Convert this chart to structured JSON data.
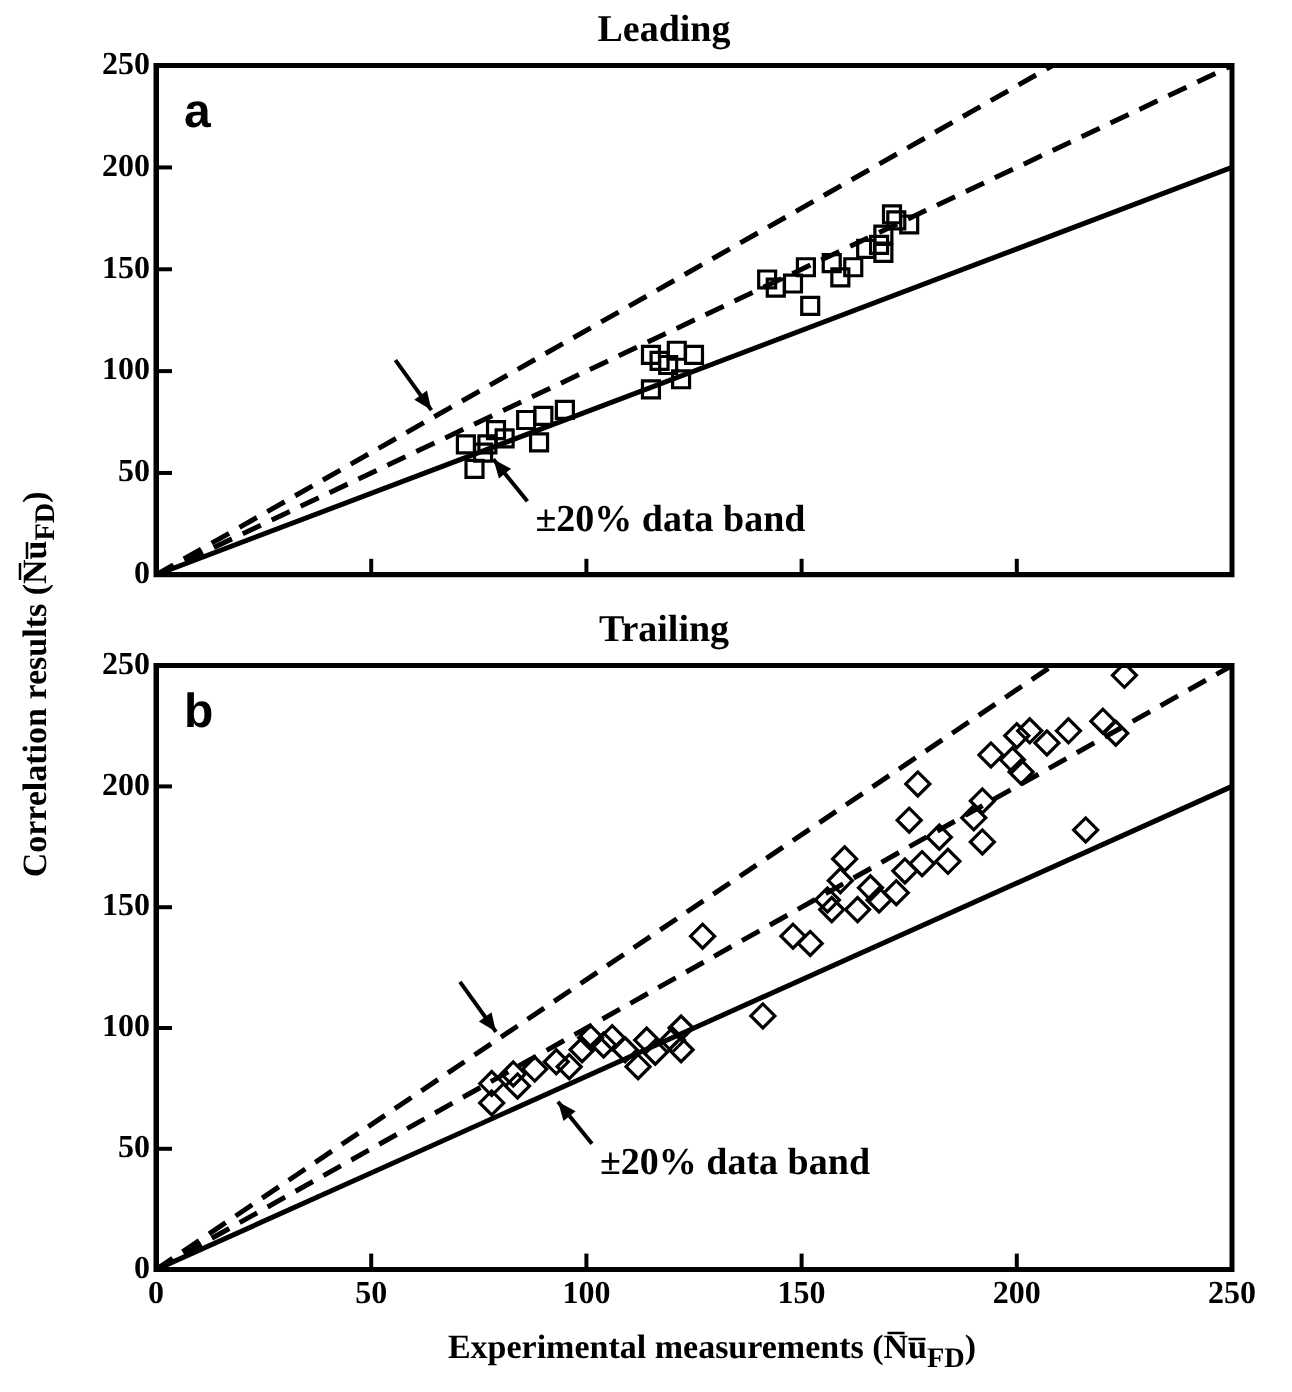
{
  "chart_data": [
    {
      "type": "scatter",
      "title": "Leading",
      "ylabel": "Correlation results (N̅u̅$_{FD}$)",
      "xlim": [
        0,
        250
      ],
      "ylim": [
        0,
        250
      ],
      "xticks": [
        0,
        50,
        100,
        150,
        200,
        250
      ],
      "yticks": [
        0,
        50,
        100,
        150,
        200,
        250
      ],
      "tick_labels": "y",
      "grid": false,
      "legend": false,
      "annotations": [
        "a",
        {
          "text": "±20% data band",
          "x": 77,
          "y": 61.6
        }
      ],
      "series": [
        {
          "type": "scatter",
          "marker": "square",
          "color": "#000000",
          "x": [
            72,
            74,
            77,
            81,
            83,
            86,
            90,
            89,
            95,
            76,
            79,
            86,
            115,
            117,
            121,
            125,
            115,
            122,
            119,
            142,
            144,
            148,
            151,
            152,
            157,
            162,
            165,
            168,
            169,
            171,
            172,
            175,
            169,
            159
          ],
          "values": [
            64,
            52,
            64,
            67,
            null,
            76,
            78,
            65,
            81,
            60,
            71,
            null,
            108,
            105,
            110,
            108,
            91,
            96,
            103,
            145,
            141,
            143,
            151,
            132,
            153,
            151,
            160,
            162,
            167,
            177,
            174,
            172,
            158,
            146
          ]
        },
        {
          "type": "line",
          "line_style": "dashed",
          "color": "#000000",
          "x": [
            0,
            208.3
          ],
          "values": [
            0,
            250
          ]
        },
        {
          "type": "line",
          "line_style": "dashed",
          "color": "#000000",
          "x": [
            0,
            250
          ],
          "values": [
            0,
            250
          ]
        },
        {
          "type": "line",
          "line_style": "solid",
          "color": "#000000",
          "x": [
            0,
            250
          ],
          "values": [
            0,
            200
          ]
        }
      ]
    },
    {
      "type": "scatter",
      "title": "Trailing",
      "xlabel": "Experimental measurements (N̅u̅$_{FD}$)",
      "xlim": [
        0,
        250
      ],
      "ylim": [
        0,
        250
      ],
      "xticks": [
        0,
        50,
        100,
        150,
        200,
        250
      ],
      "yticks": [
        0,
        50,
        100,
        150,
        200,
        250
      ],
      "grid": false,
      "legend": false,
      "annotations": [
        "b",
        {
          "text": "±20% data band",
          "x": 92,
          "y": 73.6
        }
      ],
      "series": [
        {
          "type": "scatter",
          "marker": "diamond",
          "color": "#000000",
          "x": [
            78,
            78,
            83,
            84,
            88,
            93,
            96,
            99,
            101,
            104,
            106,
            109,
            112,
            114,
            116,
            118,
            120,
            122,
            122,
            127,
            141,
            148,
            152,
            156,
            157,
            160,
            159,
            163,
            166,
            168,
            172,
            174,
            175,
            177,
            178,
            182,
            184,
            190,
            192,
            192,
            194,
            199,
            200,
            201,
            203,
            207,
            212,
            216,
            220,
            223,
            225
          ],
          "values": [
            69,
            77,
            81,
            76,
            83,
            86,
            84,
            91,
            96,
            93,
            96,
            91,
            84,
            95,
            90,
            null,
            95,
            91,
            100,
            138,
            105,
            138,
            135,
            153,
            149,
            170,
            161,
            149,
            158,
            153,
            156,
            165,
            186,
            201,
            168,
            179,
            169,
            187,
            177,
            194,
            213,
            211,
            221,
            206,
            223,
            218,
            223,
            182,
            227,
            222,
            246
          ]
        },
        {
          "type": "line",
          "line_style": "dashed",
          "color": "#000000",
          "x": [
            0,
            208.3
          ],
          "values": [
            0,
            250
          ]
        },
        {
          "type": "line",
          "line_style": "dashed",
          "color": "#000000",
          "x": [
            0,
            250
          ],
          "values": [
            0,
            250
          ]
        },
        {
          "type": "line",
          "line_style": "solid",
          "color": "#000000",
          "x": [
            0,
            250
          ],
          "values": [
            0,
            200
          ]
        }
      ]
    }
  ]
}
